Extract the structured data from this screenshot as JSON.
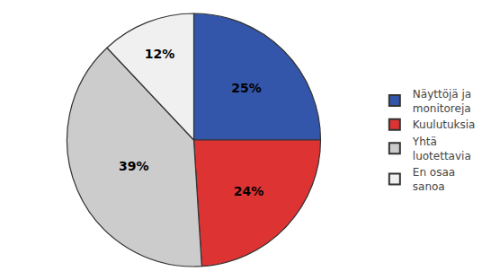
{
  "chart_data": {
    "type": "pie",
    "categories": [
      "Näyttöjä ja\nmonitoreja",
      "Kuulutuksia",
      "Yhtä\nluotettavia",
      "En osaa\nsanoa"
    ],
    "values": [
      25,
      24,
      39,
      12
    ],
    "value_labels": [
      "25%",
      "24%",
      "39%",
      "12%"
    ],
    "data_labels": true,
    "colors": [
      "#3355aa",
      "#dd3333",
      "#cccccc",
      "#f0f0f0"
    ],
    "legend": "right"
  }
}
